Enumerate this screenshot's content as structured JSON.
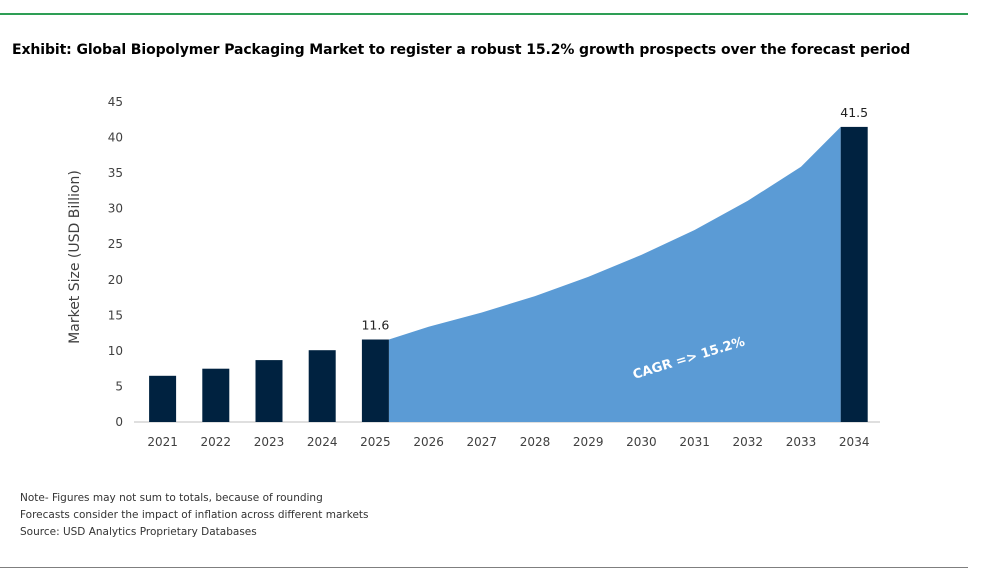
{
  "title": "Exhibit: Global Biopolymer Packaging Market to register a robust 15.2% growth prospects over the forecast period",
  "notes": [
    "Note- Figures may not sum to totals, because of rounding",
    "Forecasts consider the impact of inflation across different markets",
    "Source: USD Analytics Proprietary Databases"
  ],
  "colors": {
    "bar": "#002240",
    "area": "#5b9bd5",
    "top_rule": "#2e9e55",
    "bottom_rule": "#7f7f7f"
  },
  "chart_data": {
    "type": "bar",
    "categories": [
      "2021",
      "2022",
      "2023",
      "2024",
      "2025",
      "2026",
      "2027",
      "2028",
      "2029",
      "2030",
      "2031",
      "2032",
      "2033",
      "2034"
    ],
    "bars": [
      {
        "x": "2021",
        "y": 6.5
      },
      {
        "x": "2022",
        "y": 7.5
      },
      {
        "x": "2023",
        "y": 8.7
      },
      {
        "x": "2024",
        "y": 10.1
      },
      {
        "x": "2025",
        "y": 11.6,
        "label": "11.6"
      },
      {
        "x": "2034",
        "y": 41.5,
        "label": "41.5"
      }
    ],
    "area": {
      "x": [
        "2025",
        "2026",
        "2027",
        "2028",
        "2029",
        "2030",
        "2031",
        "2032",
        "2033",
        "2034"
      ],
      "values": [
        11.6,
        13.4,
        15.4,
        17.7,
        20.4,
        23.5,
        27.0,
        31.1,
        35.9,
        41.5
      ]
    },
    "annotation": "CAGR => 15.2%",
    "ylabel": "Market Size (USD Billion)",
    "ylim": [
      0,
      45
    ],
    "yticks": [
      0,
      5,
      10,
      15,
      20,
      25,
      30,
      35,
      40,
      45
    ],
    "grid": false
  }
}
